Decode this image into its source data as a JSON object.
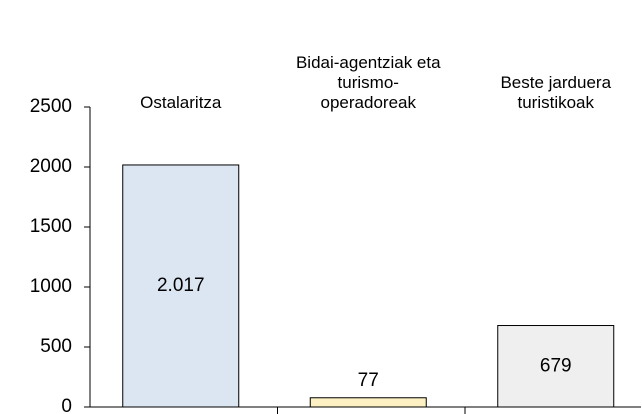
{
  "chart_data": {
    "type": "bar",
    "categories": [
      "Ostalaritza",
      "Bidai-agentziak eta turismo-operadoreak",
      "Beste jarduera turistikoak"
    ],
    "values": [
      2017,
      77,
      679
    ],
    "value_labels": [
      "2.017",
      "77",
      "679"
    ],
    "colors": [
      "#dce6f2",
      "#fdf0c2",
      "#efefef"
    ],
    "ylim": [
      0,
      2500
    ],
    "yticks": [
      0,
      500,
      1000,
      1500,
      2000,
      2500
    ],
    "grid": false
  }
}
